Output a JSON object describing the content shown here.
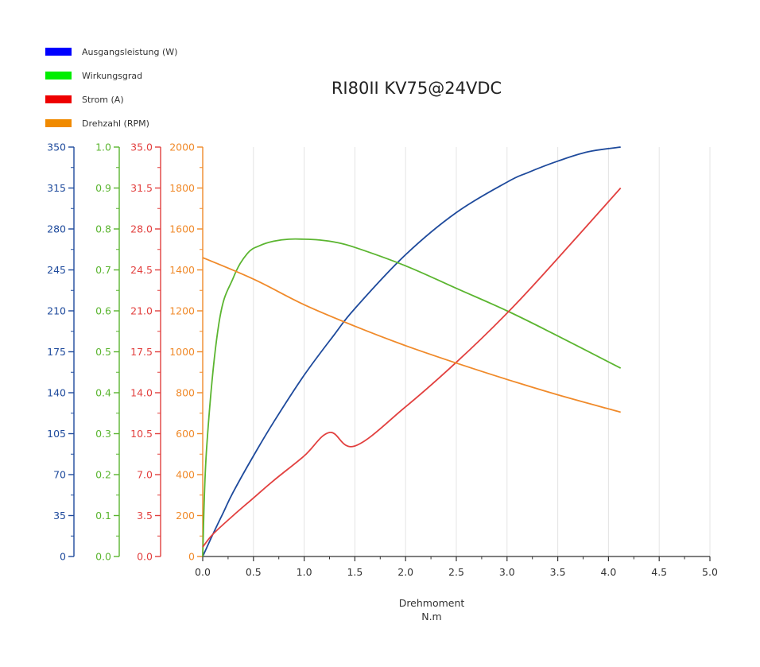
{
  "chart_data": {
    "type": "line",
    "title": "RI80II KV75@24VDC",
    "xlabel": "Drehmoment",
    "xunit": "N.m",
    "xlim": [
      0,
      5
    ],
    "xticks": [
      "0.0",
      "0.5",
      "1.0",
      "1.5",
      "2.0",
      "2.5",
      "3.0",
      "3.5",
      "4.0",
      "4.5",
      "5.0"
    ],
    "grid": true,
    "legend_position": "top-left",
    "axes": [
      {
        "id": "power",
        "color": "#1e4a9c",
        "range": [
          0,
          350
        ],
        "ticks": [
          "0",
          "35",
          "70",
          "105",
          "140",
          "175",
          "210",
          "245",
          "280",
          "315",
          "350"
        ]
      },
      {
        "id": "efficiency",
        "color": "#5bb530",
        "range": [
          0,
          1
        ],
        "ticks": [
          "0.0",
          "0.1",
          "0.2",
          "0.3",
          "0.4",
          "0.5",
          "0.6",
          "0.7",
          "0.8",
          "0.9",
          "1.0"
        ]
      },
      {
        "id": "current",
        "color": "#e2403f",
        "range": [
          0,
          35
        ],
        "ticks": [
          "0.0",
          "3.5",
          "7.0",
          "10.5",
          "14.0",
          "17.5",
          "21.0",
          "24.5",
          "28.0",
          "31.5",
          "35.0"
        ]
      },
      {
        "id": "speed",
        "color": "#f08a2a",
        "range": [
          0,
          2000
        ],
        "ticks": [
          "0",
          "200",
          "400",
          "600",
          "800",
          "1000",
          "1200",
          "1400",
          "1600",
          "1800",
          "2000"
        ]
      }
    ],
    "series": [
      {
        "name": "Ausgangsleistung (W)",
        "axis": "power",
        "color": "#1e4a9c",
        "legend_color": "#0000ff",
        "x": [
          0,
          0.1,
          0.2,
          0.3,
          0.5,
          0.7,
          1.0,
          1.3,
          1.5,
          2.0,
          2.5,
          3.0,
          3.2,
          3.5,
          3.8,
          4.12
        ],
        "y": [
          0,
          19,
          37,
          55,
          86,
          115,
          155,
          190,
          212,
          258,
          294,
          320,
          328,
          338,
          346,
          350
        ]
      },
      {
        "name": "Wirkungsgrad",
        "axis": "efficiency",
        "color": "#5bb530",
        "legend_color": "#00ee00",
        "x": [
          0,
          0.04,
          0.16,
          0.3,
          0.44,
          0.57,
          0.7,
          0.85,
          1.0,
          1.15,
          1.3,
          1.5,
          2.0,
          2.5,
          3.0,
          3.45,
          4.12
        ],
        "y": [
          0,
          0.27,
          0.57,
          0.68,
          0.74,
          0.76,
          0.77,
          0.775,
          0.775,
          0.773,
          0.768,
          0.755,
          0.71,
          0.655,
          0.6,
          0.545,
          0.46
        ]
      },
      {
        "name": "Strom (A)",
        "axis": "current",
        "color": "#e2403f",
        "legend_color": "#ee0000",
        "x": [
          0,
          0.1,
          0.3,
          0.5,
          0.7,
          1.0,
          1.25,
          1.5,
          2.0,
          2.5,
          3.0,
          3.45,
          4.12
        ],
        "y": [
          0.8,
          1.9,
          3.5,
          5.0,
          6.5,
          8.6,
          10.6,
          9.45,
          12.8,
          16.6,
          20.8,
          25.0,
          31.5
        ]
      },
      {
        "name": "Drehzahl (RPM)",
        "axis": "speed",
        "color": "#f08a2a",
        "legend_color": "#f08a00",
        "x": [
          0,
          0.5,
          1.0,
          1.5,
          2.0,
          2.5,
          3.0,
          3.5,
          4.12
        ],
        "y": [
          1460,
          1355,
          1230,
          1125,
          1030,
          945,
          865,
          790,
          705
        ]
      }
    ]
  }
}
